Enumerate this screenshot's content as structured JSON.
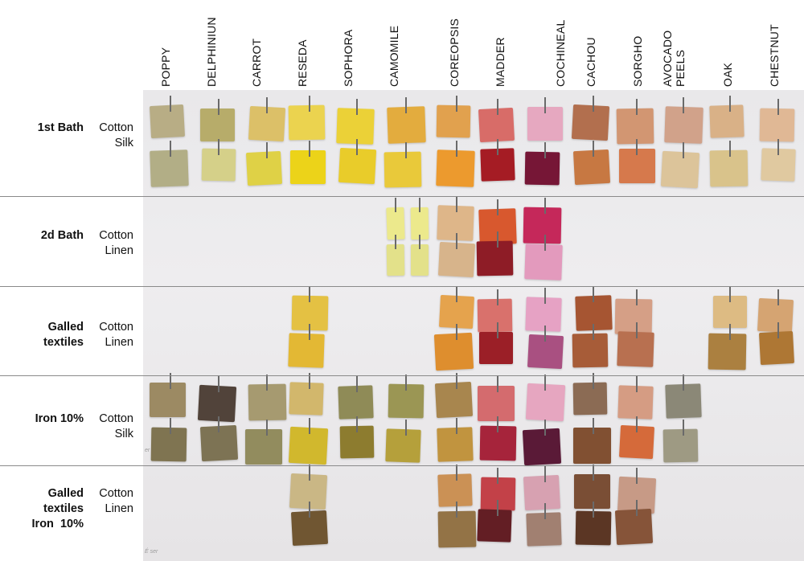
{
  "columns": [
    "POPPY",
    "DELPHINIUN",
    "CARROT",
    "RESEDA",
    "SOPHORA",
    "CAMOMILE",
    "COREOPSIS",
    "MADDER",
    "COCHINEAL",
    "CACHOU",
    "SORGHO",
    "AVOCADO\nPEELS",
    "OAK",
    "CHESTNUT"
  ],
  "rows": [
    {
      "title": "1st Bath",
      "fabrics": "Cotton\nSilk"
    },
    {
      "title": "2d Bath",
      "fabrics": "Cotton\nLinen"
    },
    {
      "title": "Galled\ntextiles",
      "fabrics": "Cotton\nLinen"
    },
    {
      "title": "Iron 10%",
      "fabrics": "Cotton\nSilk"
    },
    {
      "title": "Galled\ntextiles\nIron  10%",
      "fabrics": "Cotton\nLinen"
    }
  ],
  "swatch_colors": {
    "row1": [
      [
        "#b8ad85",
        "#b2ae86"
      ],
      [
        "#b7ac6a",
        "#d5d089"
      ],
      [
        "#dcc068",
        "#dfd146"
      ],
      [
        "#ebd34f",
        "#ecd319"
      ],
      [
        "#ebd137",
        "#e9cc2a"
      ],
      [
        "#e3ac3e",
        "#e9c93a"
      ],
      [
        "#e1a14e",
        "#ec9a2e"
      ],
      [
        "#d86c68",
        "#a51c24"
      ],
      [
        "#e6a8c0",
        "#761636"
      ],
      [
        "#b26f4e",
        "#c77842"
      ],
      [
        "#d29672",
        "#d6794c"
      ],
      [
        "#d1a28a",
        "#dcc49a"
      ],
      [
        "#d9b187",
        "#d9c38b"
      ],
      [
        "#e0b895",
        "#e0c9a0"
      ]
    ],
    "row2": [
      null,
      null,
      null,
      null,
      null,
      [
        "#ece98c",
        "#e3e18a"
      ],
      [
        "#deb689",
        "#d7b48b"
      ],
      [
        "#d8582e",
        "#8e1c26"
      ],
      [
        "#c5285a",
        "#e39abd"
      ],
      null,
      null,
      null,
      null,
      null
    ],
    "row3": [
      null,
      null,
      null,
      [
        "#e4c143",
        "#e3b834"
      ],
      null,
      null,
      [
        "#e5a34d",
        "#de8e2e"
      ],
      [
        "#d9716c",
        "#9b1f27"
      ],
      [
        "#e6a2c4",
        "#a95081"
      ],
      [
        "#a65532",
        "#a75c38"
      ],
      [
        "#d59f86",
        "#b87050"
      ],
      null,
      [
        "#ddbb83",
        "#ab8040"
      ],
      [
        "#d5a472",
        "#ae7734"
      ]
    ],
    "row4": [
      [
        "#9c8a63",
        "#7f7451"
      ],
      [
        "#51433a",
        "#7d7354"
      ],
      [
        "#a69a70",
        "#928c5e"
      ],
      [
        "#d2b76c",
        "#d1b82d"
      ],
      [
        "#8f8b57",
        "#8d7c2f"
      ],
      [
        "#9b9654",
        "#b5a03b"
      ],
      [
        "#a8864e",
        "#c1943f"
      ],
      [
        "#d46b6e",
        "#a6243b"
      ],
      [
        "#e6a6c0",
        "#5a1a37"
      ],
      [
        "#8b6b54",
        "#815032"
      ],
      [
        "#d59c83",
        "#d56a3a"
      ],
      [
        "#8b8877",
        "#9e9a83"
      ],
      null,
      null
    ],
    "row5": [
      null,
      null,
      null,
      [
        "#cab785",
        "#705632"
      ],
      null,
      null,
      [
        "#cb9155",
        "#937346"
      ],
      [
        "#c34148",
        "#631e24"
      ],
      [
        "#d7a1b1",
        "#a18071"
      ],
      [
        "#7a4e35",
        "#5b3624"
      ],
      [
        "#c79a86",
        "#865439"
      ],
      null,
      null,
      null
    ]
  },
  "scribbles": [
    "er",
    "É ser"
  ]
}
